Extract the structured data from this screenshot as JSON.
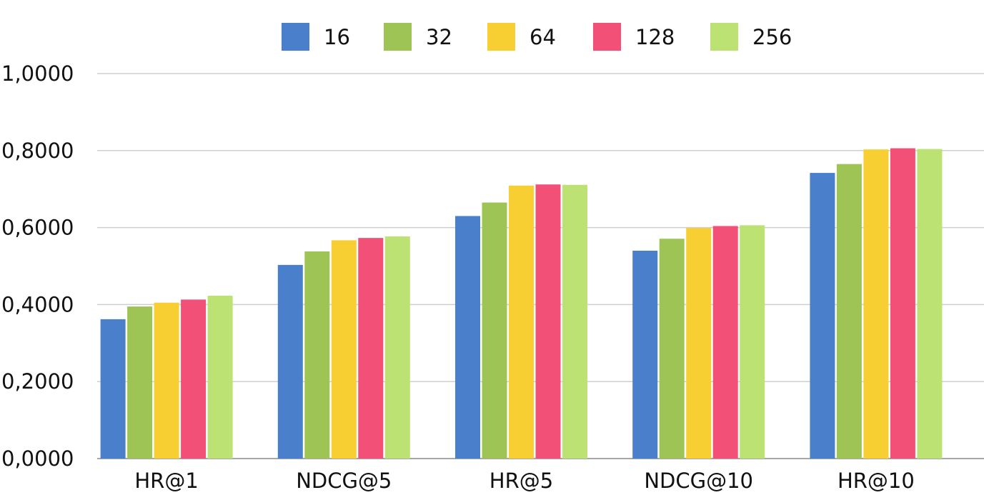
{
  "chart_data": {
    "type": "bar",
    "title": "",
    "xlabel": "",
    "ylabel": "",
    "categories": [
      "HR@1",
      "NDCG@5",
      "HR@5",
      "NDCG@10",
      "HR@10"
    ],
    "series": [
      {
        "name": "16",
        "color": "#4a7fcc",
        "values": [
          0.362,
          0.503,
          0.63,
          0.54,
          0.742
        ]
      },
      {
        "name": "32",
        "color": "#9dc455",
        "values": [
          0.395,
          0.538,
          0.665,
          0.571,
          0.765
        ]
      },
      {
        "name": "64",
        "color": "#f8cf32",
        "values": [
          0.405,
          0.567,
          0.709,
          0.599,
          0.803
        ]
      },
      {
        "name": "128",
        "color": "#f25076",
        "values": [
          0.413,
          0.573,
          0.712,
          0.604,
          0.806
        ]
      },
      {
        "name": "256",
        "color": "#bbe272",
        "values": [
          0.423,
          0.577,
          0.711,
          0.606,
          0.804
        ]
      }
    ],
    "y_ticks": [
      "0,0000",
      "0,2000",
      "0,4000",
      "0,6000",
      "0,8000",
      "1,0000"
    ],
    "ylim": [
      0,
      1
    ],
    "grid": true,
    "legend_position": "top-center"
  }
}
